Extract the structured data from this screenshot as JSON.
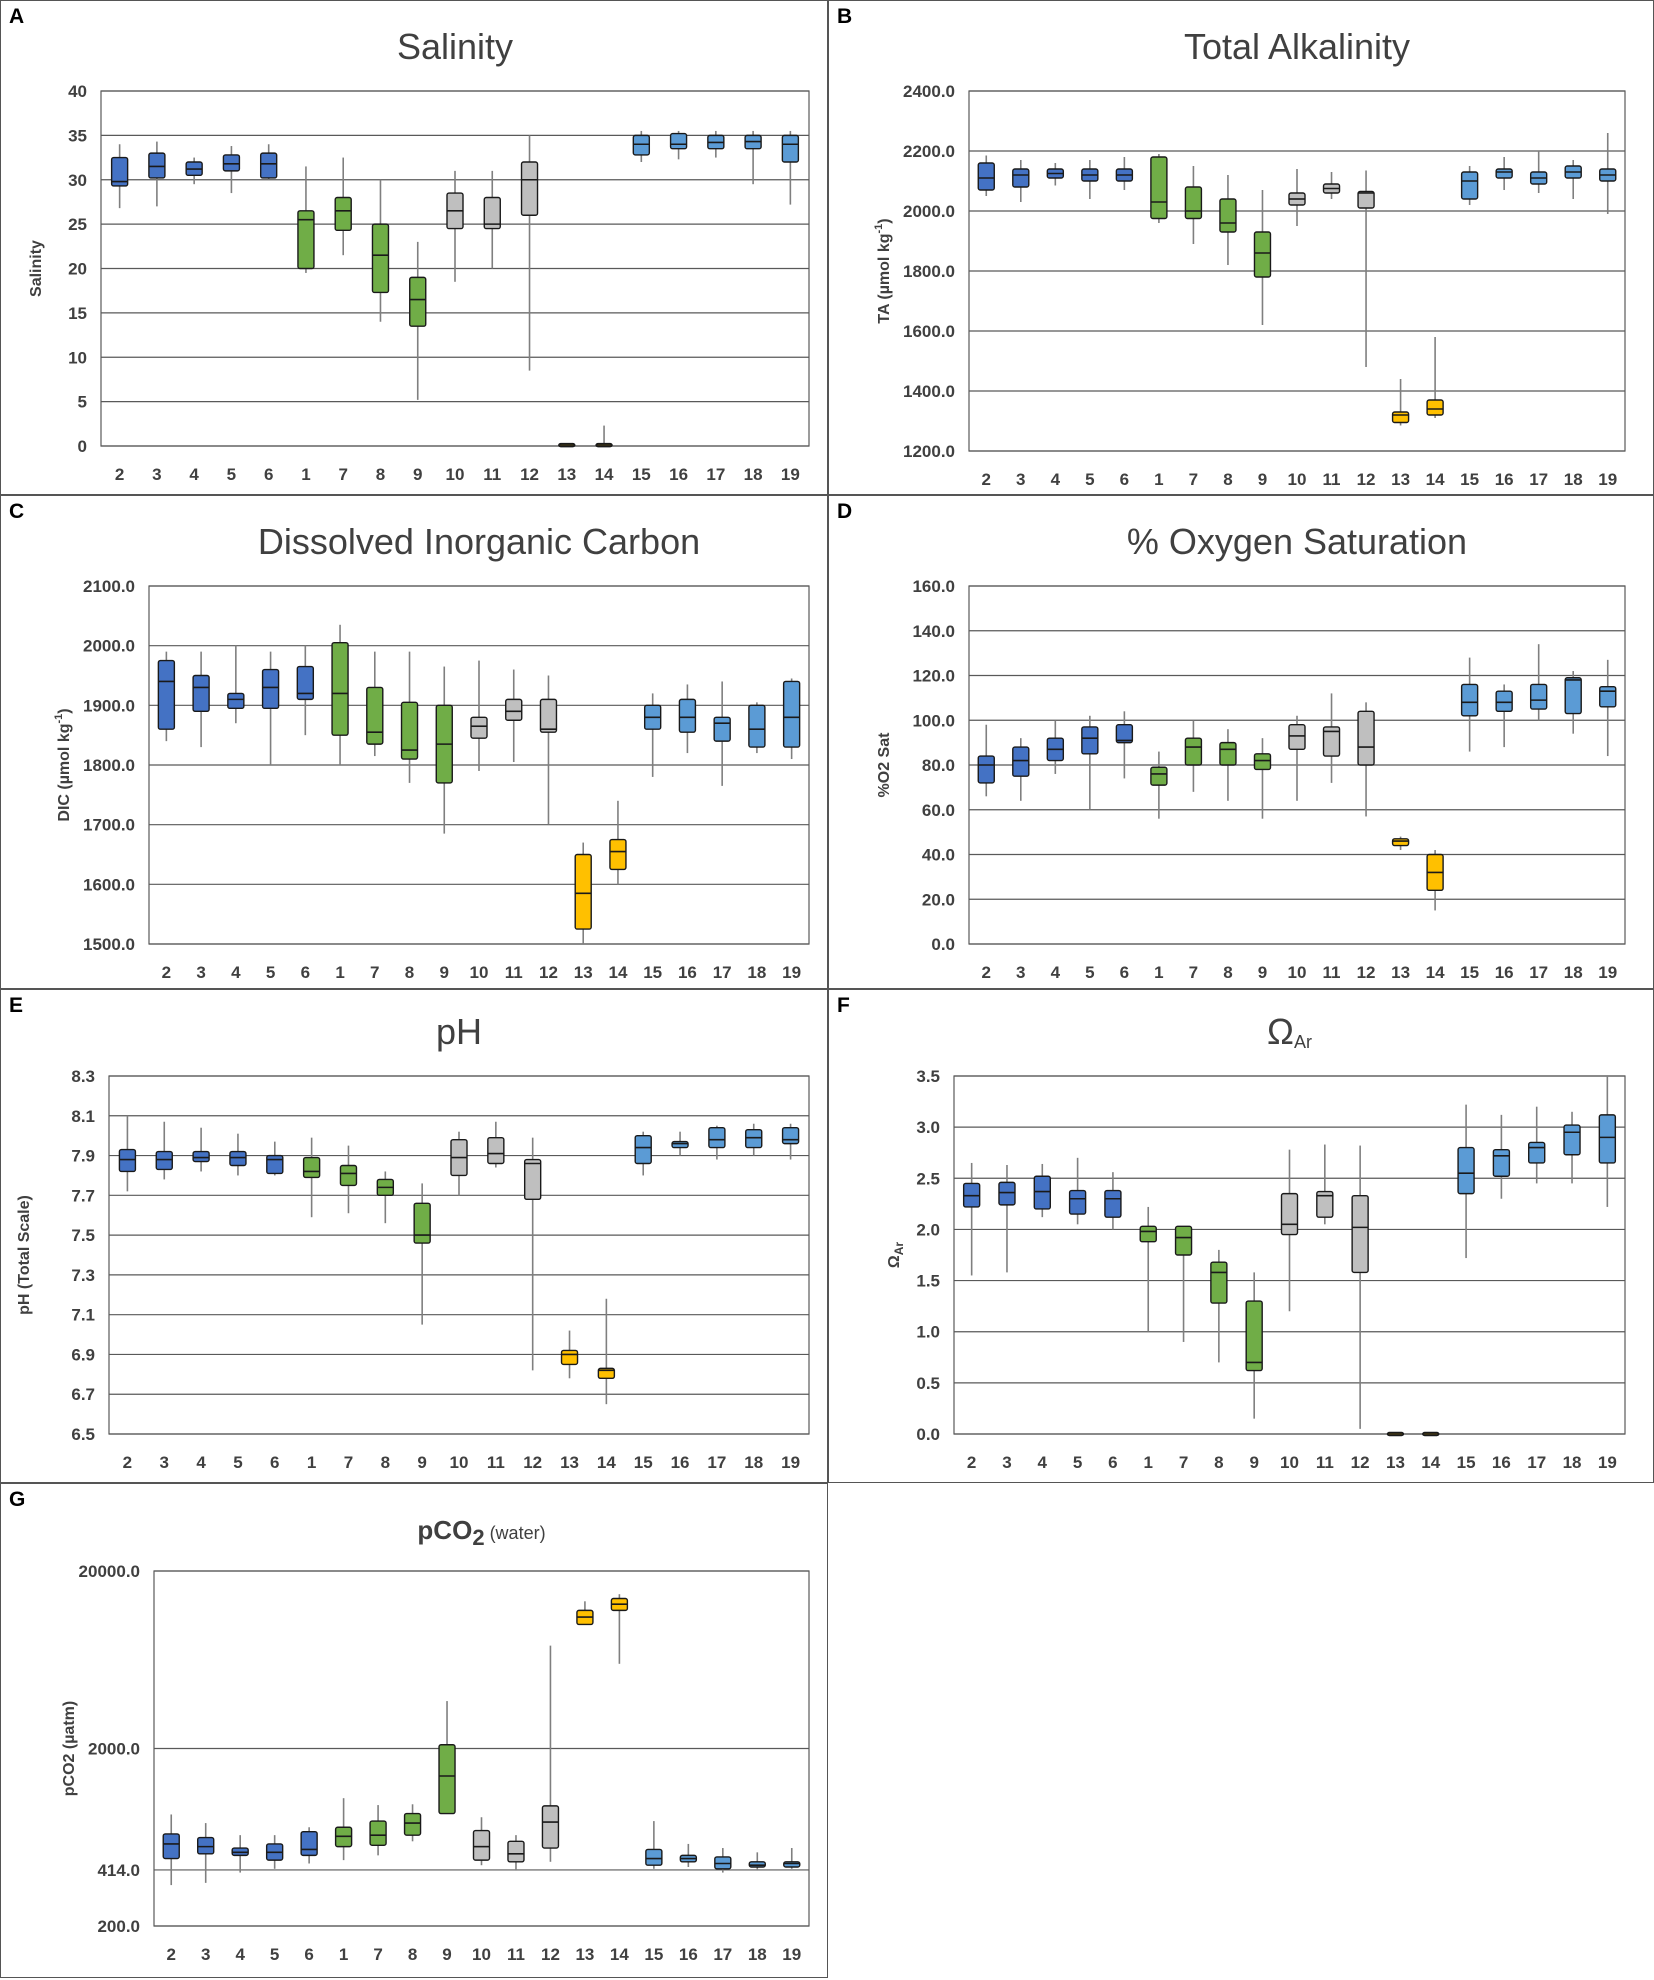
{
  "figure": {
    "sites": [
      "2",
      "3",
      "4",
      "5",
      "6",
      "1",
      "7",
      "8",
      "9",
      "10",
      "11",
      "12",
      "13",
      "14",
      "15",
      "16",
      "17",
      "18",
      "19"
    ],
    "group_colors": {
      "dark_blue": "#4472C4",
      "green": "#70AD47",
      "gray": "#BFBFBF",
      "yellow": "#FFC000",
      "light_blue": "#5B9BD5"
    },
    "site_groups": [
      "dark_blue",
      "dark_blue",
      "dark_blue",
      "dark_blue",
      "dark_blue",
      "green",
      "green",
      "green",
      "green",
      "gray",
      "gray",
      "gray",
      "yellow",
      "yellow",
      "light_blue",
      "light_blue",
      "light_blue",
      "light_blue",
      "light_blue"
    ]
  },
  "chart_data": [
    {
      "panel": "A",
      "type": "boxplot",
      "title": "Salinity",
      "title_sub": "",
      "ylabel": "Salinity",
      "ylabel_sup": "",
      "scale": "linear",
      "ylim": [
        0,
        40
      ],
      "ticks": [
        0,
        5,
        10,
        15,
        20,
        25,
        30,
        35,
        40
      ],
      "tick_labels": [
        "0",
        "5",
        "10",
        "15",
        "20",
        "25",
        "30",
        "35",
        "40"
      ],
      "boxes": [
        [
          26.8,
          29.3,
          29.8,
          32.5,
          34.0
        ],
        [
          27.0,
          30.2,
          31.5,
          33.0,
          34.3
        ],
        [
          29.5,
          30.5,
          31.2,
          32.0,
          32.5
        ],
        [
          28.5,
          31.0,
          31.8,
          32.8,
          33.8
        ],
        [
          30.0,
          30.2,
          31.8,
          33.0,
          34.0
        ],
        [
          19.5,
          20.0,
          25.5,
          26.5,
          31.5
        ],
        [
          21.5,
          24.3,
          26.5,
          28.0,
          32.5
        ],
        [
          14.0,
          17.3,
          21.5,
          25.0,
          30.0
        ],
        [
          5.2,
          13.5,
          16.5,
          19.0,
          23.0
        ],
        [
          18.5,
          24.5,
          26.5,
          28.5,
          31.0
        ],
        [
          20.0,
          24.5,
          25.0,
          28.0,
          31.0
        ],
        [
          8.5,
          26.0,
          30.0,
          32.0,
          35.0
        ],
        [
          0.1,
          0.1,
          0.1,
          0.1,
          0.1
        ],
        [
          0.1,
          0.1,
          0.1,
          0.1,
          2.3
        ],
        [
          32.0,
          32.8,
          34.0,
          35.0,
          35.5
        ],
        [
          32.3,
          33.5,
          34.0,
          35.2,
          35.5
        ],
        [
          32.5,
          33.5,
          34.2,
          35.0,
          35.5
        ],
        [
          29.5,
          33.5,
          34.3,
          35.0,
          35.5
        ],
        [
          27.2,
          32.0,
          34.0,
          35.0,
          35.5
        ]
      ]
    },
    {
      "panel": "B",
      "type": "boxplot",
      "title": "Total Alkalinity",
      "title_sub": "",
      "ylabel": "TA (µmol kg",
      "ylabel_sup": "-1",
      "ylabel_end": ")",
      "scale": "linear",
      "ylim": [
        1200,
        2400
      ],
      "ticks": [
        1200,
        1400,
        1600,
        1800,
        2000,
        2200,
        2400
      ],
      "tick_labels": [
        "1200.0",
        "1400.0",
        "1600.0",
        "1800.0",
        "2000.0",
        "2200.0",
        "2400.0"
      ],
      "boxes": [
        [
          2050,
          2070,
          2110,
          2160,
          2185
        ],
        [
          2030,
          2080,
          2120,
          2140,
          2170
        ],
        [
          2085,
          2110,
          2125,
          2140,
          2160
        ],
        [
          2040,
          2100,
          2120,
          2140,
          2170
        ],
        [
          2070,
          2100,
          2120,
          2140,
          2180
        ],
        [
          1960,
          1975,
          2030,
          2180,
          2190
        ],
        [
          1890,
          1975,
          2000,
          2080,
          2150
        ],
        [
          1820,
          1930,
          1960,
          2040,
          2120
        ],
        [
          1620,
          1780,
          1860,
          1930,
          2070
        ],
        [
          1950,
          2020,
          2040,
          2060,
          2140
        ],
        [
          2040,
          2060,
          2075,
          2090,
          2130
        ],
        [
          1480,
          2010,
          2060,
          2065,
          2135
        ],
        [
          1285,
          1295,
          1320,
          1330,
          1440
        ],
        [
          1310,
          1320,
          1340,
          1370,
          1580
        ],
        [
          2020,
          2040,
          2100,
          2130,
          2150
        ],
        [
          2070,
          2110,
          2130,
          2140,
          2180
        ],
        [
          2060,
          2090,
          2110,
          2130,
          2200
        ],
        [
          2040,
          2110,
          2130,
          2150,
          2170
        ],
        [
          1990,
          2100,
          2120,
          2140,
          2260
        ]
      ]
    },
    {
      "panel": "C",
      "type": "boxplot",
      "title": "Dissolved Inorganic Carbon",
      "title_sub": "",
      "ylabel": "DIC (µmol kg",
      "ylabel_sup": "-1",
      "ylabel_end": ")",
      "scale": "linear",
      "ylim": [
        1500,
        2100
      ],
      "ticks": [
        1500,
        1600,
        1700,
        1800,
        1900,
        2000,
        2100
      ],
      "tick_labels": [
        "1500.0",
        "1600.0",
        "1700.0",
        "1800.0",
        "1900.0",
        "2000.0",
        "2100.0"
      ],
      "boxes": [
        [
          1840,
          1860,
          1940,
          1975,
          1990
        ],
        [
          1830,
          1890,
          1930,
          1950,
          1990
        ],
        [
          1870,
          1895,
          1910,
          1920,
          2000
        ],
        [
          1800,
          1895,
          1930,
          1960,
          1990
        ],
        [
          1850,
          1910,
          1920,
          1965,
          2000
        ],
        [
          1800,
          1850,
          1920,
          2005,
          2035
        ],
        [
          1815,
          1835,
          1855,
          1930,
          1990
        ],
        [
          1770,
          1810,
          1825,
          1905,
          1990
        ],
        [
          1685,
          1770,
          1835,
          1900,
          1965
        ],
        [
          1790,
          1845,
          1865,
          1880,
          1975
        ],
        [
          1805,
          1875,
          1890,
          1910,
          1960
        ],
        [
          1700,
          1855,
          1860,
          1910,
          1950
        ],
        [
          1500,
          1525,
          1585,
          1650,
          1670
        ],
        [
          1600,
          1625,
          1655,
          1675,
          1740
        ],
        [
          1780,
          1860,
          1880,
          1900,
          1920
        ],
        [
          1820,
          1855,
          1880,
          1910,
          1935
        ],
        [
          1765,
          1840,
          1870,
          1880,
          1940
        ],
        [
          1820,
          1830,
          1860,
          1900,
          1905
        ],
        [
          1810,
          1830,
          1880,
          1940,
          1945
        ]
      ]
    },
    {
      "panel": "D",
      "type": "boxplot",
      "title": "% Oxygen Saturation",
      "title_sub": "",
      "ylabel": "%O2 Sat",
      "ylabel_sup": "",
      "scale": "linear",
      "ylim": [
        0,
        160
      ],
      "ticks": [
        0,
        20,
        40,
        60,
        80,
        100,
        120,
        140,
        160
      ],
      "tick_labels": [
        "0.0",
        "20.0",
        "40.0",
        "60.0",
        "80.0",
        "100.0",
        "120.0",
        "140.0",
        "160.0"
      ],
      "boxes": [
        [
          66,
          72,
          80,
          84,
          98
        ],
        [
          64,
          75,
          82,
          88,
          92
        ],
        [
          76,
          82,
          87,
          92,
          100
        ],
        [
          60,
          85,
          92,
          97,
          102
        ],
        [
          74,
          90,
          91,
          98,
          104
        ],
        [
          56,
          71,
          76,
          79,
          86
        ],
        [
          68,
          80,
          88,
          92,
          100
        ],
        [
          64,
          80,
          87,
          90,
          96
        ],
        [
          56,
          78,
          82,
          85,
          92
        ],
        [
          64,
          87,
          93,
          98,
          102
        ],
        [
          72,
          84,
          95,
          97,
          112
        ],
        [
          57,
          80,
          88,
          104,
          108
        ],
        [
          42,
          44,
          46,
          47,
          48
        ],
        [
          15,
          24,
          32,
          40,
          42
        ],
        [
          86,
          102,
          108,
          116,
          128
        ],
        [
          88,
          104,
          108,
          113,
          116
        ],
        [
          100,
          105,
          109,
          116,
          134
        ],
        [
          94,
          103,
          118,
          119,
          122
        ],
        [
          84,
          106,
          113,
          115,
          127
        ]
      ]
    },
    {
      "panel": "E",
      "type": "boxplot",
      "title": "pH",
      "title_sub": "",
      "ylabel": "pH (Total Scale)",
      "ylabel_sup": "",
      "scale": "linear",
      "ylim": [
        6.5,
        8.3
      ],
      "ticks": [
        6.5,
        6.7,
        6.9,
        7.1,
        7.3,
        7.5,
        7.7,
        7.9,
        8.1,
        8.3
      ],
      "tick_labels": [
        "6.5",
        "6.7",
        "6.9",
        "7.1",
        "7.3",
        "7.5",
        "7.7",
        "7.9",
        "8.1",
        "8.3"
      ],
      "boxes": [
        [
          7.72,
          7.82,
          7.88,
          7.93,
          8.1
        ],
        [
          7.78,
          7.83,
          7.88,
          7.92,
          8.07
        ],
        [
          7.82,
          7.87,
          7.89,
          7.92,
          8.04
        ],
        [
          7.8,
          7.85,
          7.89,
          7.92,
          8.01
        ],
        [
          7.8,
          7.81,
          7.88,
          7.9,
          7.97
        ],
        [
          7.59,
          7.79,
          7.82,
          7.89,
          7.99
        ],
        [
          7.61,
          7.75,
          7.81,
          7.85,
          7.95
        ],
        [
          7.56,
          7.7,
          7.74,
          7.78,
          7.82
        ],
        [
          7.05,
          7.46,
          7.5,
          7.66,
          7.76
        ],
        [
          7.7,
          7.8,
          7.89,
          7.98,
          8.02
        ],
        [
          7.84,
          7.86,
          7.91,
          7.99,
          8.07
        ],
        [
          6.82,
          7.68,
          7.86,
          7.88,
          7.99
        ],
        [
          6.78,
          6.85,
          6.9,
          6.92,
          7.02
        ],
        [
          6.65,
          6.78,
          6.82,
          6.83,
          7.18
        ],
        [
          7.8,
          7.86,
          7.94,
          8.0,
          8.02
        ],
        [
          7.9,
          7.94,
          7.96,
          7.97,
          8.02
        ],
        [
          7.88,
          7.94,
          7.98,
          8.04,
          8.05
        ],
        [
          7.9,
          7.94,
          7.99,
          8.03,
          8.06
        ],
        [
          7.88,
          7.96,
          7.98,
          8.04,
          8.06
        ]
      ]
    },
    {
      "panel": "F",
      "type": "boxplot",
      "title": "Ω",
      "title_sub": "Ar",
      "ylabel": "Ω",
      "ylabel_sup": "",
      "ylabel_sub": "Ar",
      "scale": "linear",
      "ylim": [
        0,
        3.5
      ],
      "ticks": [
        0,
        0.5,
        1,
        1.5,
        2,
        2.5,
        3,
        3.5
      ],
      "tick_labels": [
        "0.0",
        "0.5",
        "1.0",
        "1.5",
        "2.0",
        "2.5",
        "3.0",
        "3.5"
      ],
      "boxes": [
        [
          1.55,
          2.22,
          2.33,
          2.45,
          2.65
        ],
        [
          1.58,
          2.24,
          2.36,
          2.46,
          2.63
        ],
        [
          2.12,
          2.2,
          2.37,
          2.52,
          2.64
        ],
        [
          2.05,
          2.15,
          2.3,
          2.38,
          2.7
        ],
        [
          2.0,
          2.12,
          2.3,
          2.38,
          2.56
        ],
        [
          1.0,
          1.88,
          1.98,
          2.03,
          2.22
        ],
        [
          0.9,
          1.75,
          1.92,
          2.03,
          2.03
        ],
        [
          0.7,
          1.28,
          1.58,
          1.68,
          1.8
        ],
        [
          0.15,
          0.62,
          0.7,
          1.3,
          1.58
        ],
        [
          1.2,
          1.95,
          2.05,
          2.35,
          2.78
        ],
        [
          2.05,
          2.12,
          2.33,
          2.37,
          2.83
        ],
        [
          0.05,
          1.58,
          2.02,
          2.33,
          2.82
        ],
        [
          0.0,
          0.0,
          0.0,
          0.0,
          0.0
        ],
        [
          0.0,
          0.0,
          0.0,
          0.0,
          0.0
        ],
        [
          1.72,
          2.35,
          2.55,
          2.8,
          3.22
        ],
        [
          2.3,
          2.52,
          2.72,
          2.78,
          3.12
        ],
        [
          2.45,
          2.65,
          2.8,
          2.85,
          3.2
        ],
        [
          2.45,
          2.73,
          2.95,
          3.02,
          3.15
        ],
        [
          2.22,
          2.65,
          2.9,
          3.12,
          3.5
        ]
      ]
    },
    {
      "panel": "G",
      "type": "boxplot",
      "title": "pCO",
      "title_sub": "2",
      "title_note": " (water)",
      "ylabel": "pCO2 (µatm)",
      "ylabel_sup": "",
      "scale": "log",
      "ylim": [
        200,
        20000
      ],
      "ticks": [
        200,
        414,
        2000,
        20000
      ],
      "tick_labels": [
        "200.0",
        "414.0",
        "2000.0",
        "20000.0"
      ],
      "boxes": [
        [
          340,
          480,
          580,
          660,
          850
        ],
        [
          350,
          510,
          560,
          630,
          760
        ],
        [
          400,
          500,
          520,
          550,
          650
        ],
        [
          420,
          470,
          520,
          580,
          650
        ],
        [
          450,
          500,
          540,
          680,
          720
        ],
        [
          470,
          560,
          640,
          720,
          1050
        ],
        [
          500,
          570,
          650,
          780,
          960
        ],
        [
          600,
          650,
          760,
          860,
          970
        ],
        [
          900,
          860,
          1400,
          2100,
          3700
        ],
        [
          440,
          470,
          560,
          690,
          820
        ],
        [
          410,
          460,
          510,
          600,
          650
        ],
        [
          460,
          550,
          770,
          950,
          7600
        ],
        [
          10000,
          10000,
          11000,
          12000,
          13500
        ],
        [
          6000,
          12000,
          13000,
          14000,
          14800
        ],
        [
          420,
          440,
          480,
          540,
          780
        ],
        [
          430,
          460,
          480,
          500,
          580
        ],
        [
          400,
          420,
          450,
          490,
          550
        ],
        [
          410,
          430,
          440,
          460,
          520
        ],
        [
          420,
          430,
          450,
          460,
          550
        ]
      ]
    }
  ]
}
